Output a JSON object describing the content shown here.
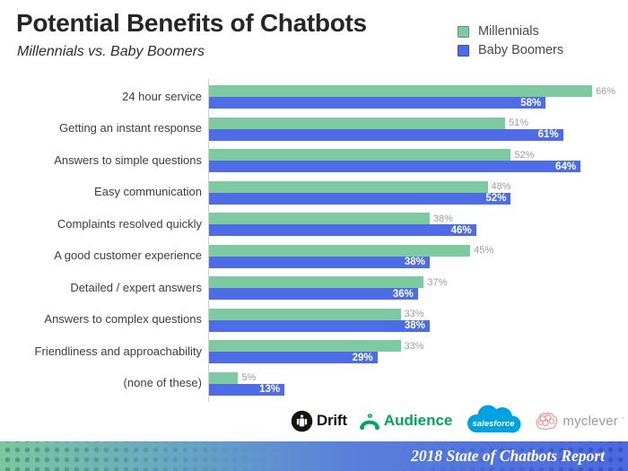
{
  "header": {
    "title": "Potential Benefits of Chatbots",
    "subtitle": "Millennials vs. Baby Boomers"
  },
  "legend": [
    {
      "label": "Millennials",
      "color": "#7dc9a2"
    },
    {
      "label": "Baby Boomers",
      "color": "#4d6ce5"
    }
  ],
  "chart_data": {
    "type": "bar",
    "orientation": "horizontal",
    "title": "Potential Benefits of Chatbots",
    "subtitle": "Millennials vs. Baby Boomers",
    "value_suffix": "%",
    "xlim": [
      0,
      70
    ],
    "grid": false,
    "legend_position": "top-right",
    "categories": [
      "24 hour service",
      "Getting an instant response",
      "Answers to simple questions",
      "Easy communication",
      "Complaints resolved quickly",
      "A good customer experience",
      "Detailed / expert answers",
      "Answers to complex questions",
      "Friendliness and approachability",
      "(none of these)"
    ],
    "series": [
      {
        "name": "Millennials",
        "color": "#7dc9a2",
        "label_style": "outside-gray",
        "values": [
          66,
          51,
          52,
          48,
          38,
          45,
          37,
          33,
          33,
          5
        ]
      },
      {
        "name": "Baby Boomers",
        "color": "#4d6ce5",
        "label_style": "inside-white",
        "values": [
          58,
          61,
          64,
          52,
          46,
          38,
          36,
          38,
          29,
          13
        ]
      }
    ]
  },
  "footer": {
    "logos": [
      {
        "label": "Drift"
      },
      {
        "label": "Audience"
      },
      {
        "label": "salesforce"
      },
      {
        "label": "myclever"
      }
    ],
    "banner_text": "2018 State of Chatbots Report"
  },
  "colors": {
    "millennials_green": "#7dc9a2",
    "boomers_blue": "#4d6ce5",
    "value_label_gray": "#9b9b9b",
    "axis_line": "#cfcfcf",
    "banner_gradient_left": "#7cc79f",
    "banner_gradient_right": "#4b69e0",
    "drift_black": "#16130f",
    "audience_green": "#00a561",
    "salesforce_blue": "#00a1e0",
    "myclever_pink": "#e59d9d"
  }
}
